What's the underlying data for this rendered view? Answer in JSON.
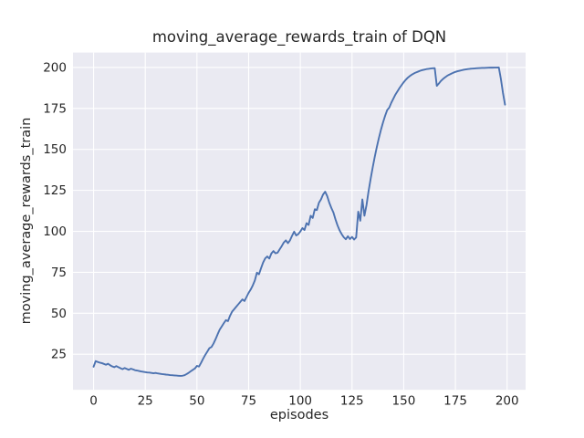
{
  "chart_data": {
    "type": "line",
    "title": "moving_average_rewards_train of DQN",
    "xlabel": "episodes",
    "ylabel": "moving_average_rewards_train",
    "x_ticks": [
      0,
      25,
      50,
      75,
      100,
      125,
      150,
      175,
      200
    ],
    "y_ticks": [
      25,
      50,
      75,
      100,
      125,
      150,
      175,
      200
    ],
    "xlim": [
      -9.95,
      208.95
    ],
    "ylim": [
      3.3,
      209.1
    ],
    "grid": true,
    "legend_position": "none",
    "style": "seaborn-darkgrid",
    "line_color": "#4C72B0",
    "plot_background_color": "#EAEAF2",
    "grid_color": "#FFFFFF",
    "text_color": "#262626",
    "series": [
      {
        "name": "moving_average_rewards_train",
        "x_start": 0,
        "x_step": 1,
        "values": [
          17.4,
          20.8,
          20.3,
          19.9,
          19.6,
          19.1,
          18.6,
          19.2,
          18.3,
          17.6,
          17.1,
          17.8,
          17.1,
          16.5,
          15.9,
          16.6,
          16.1,
          15.5,
          16.2,
          15.8,
          15.3,
          15.1,
          14.8,
          14.5,
          14.3,
          14.1,
          13.9,
          13.8,
          13.6,
          13.4,
          13.6,
          13.3,
          13.1,
          12.9,
          12.8,
          12.6,
          12.5,
          12.3,
          12.2,
          12.1,
          12.0,
          11.9,
          11.8,
          11.9,
          12.2,
          12.9,
          13.7,
          14.6,
          15.5,
          16.3,
          17.9,
          17.5,
          19.8,
          22.3,
          24.6,
          26.6,
          28.7,
          29.4,
          31.5,
          34.2,
          37.2,
          40.0,
          42.0,
          44.0,
          45.8,
          45.2,
          48.5,
          51.0,
          52.5,
          54.0,
          55.5,
          57.0,
          58.5,
          57.5,
          60.0,
          62.5,
          64.5,
          67.0,
          70.0,
          74.8,
          73.8,
          77.5,
          81.0,
          83.5,
          84.7,
          83.4,
          86.5,
          88.0,
          86.6,
          87.0,
          89.0,
          91.0,
          93.2,
          94.5,
          92.8,
          94.5,
          97.3,
          99.8,
          97.5,
          98.3,
          99.9,
          102.0,
          100.8,
          105.0,
          103.9,
          109.5,
          108.2,
          113.5,
          113.0,
          117.5,
          119.5,
          122.5,
          124.2,
          121.5,
          117.5,
          114.3,
          111.5,
          107.3,
          103.6,
          100.6,
          98.3,
          96.4,
          95.2,
          97.0,
          95.3,
          96.6,
          95.0,
          96.3,
          112.0,
          106.5,
          119.5,
          109.5,
          116.0,
          124.5,
          132.0,
          139.0,
          145.5,
          151.5,
          157.0,
          162.0,
          166.5,
          170.5,
          174.0,
          175.5,
          178.5,
          181.0,
          183.5,
          185.5,
          187.5,
          189.3,
          191.0,
          192.5,
          193.8,
          194.8,
          195.7,
          196.4,
          197.0,
          197.5,
          198.0,
          198.4,
          198.7,
          199.0,
          199.2,
          199.4,
          199.5,
          199.6,
          188.8,
          190.2,
          191.8,
          193.0,
          194.0,
          194.9,
          195.6,
          196.2,
          196.8,
          197.3,
          197.7,
          198.0,
          198.3,
          198.6,
          198.8,
          199.0,
          199.2,
          199.3,
          199.4,
          199.5,
          199.6,
          199.65,
          199.7,
          199.75,
          199.8,
          199.85,
          199.9,
          199.9,
          199.95,
          199.95,
          200.0,
          193.0,
          184.5,
          177.3
        ]
      }
    ]
  }
}
